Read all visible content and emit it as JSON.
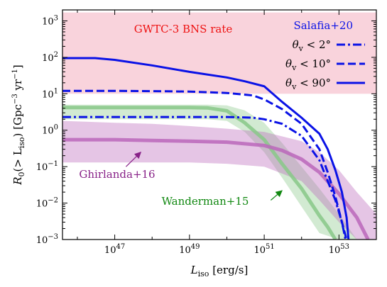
{
  "chart_data": {
    "type": "line",
    "xlabel_main": "L",
    "xlabel_sub": "iso",
    "xlabel_unit": " [erg/s]",
    "ylabel_pre": "R",
    "ylabel_sub0": "0",
    "ylabel_mid": "(> L",
    "ylabel_sub1": "iso",
    "ylabel_unit": ") [Gpc",
    "ylabel_sup1": "−3",
    "ylabel_yr": " yr",
    "ylabel_sup2": "−1",
    "ylabel_end": "]",
    "xscale": "log",
    "yscale": "log",
    "xlim": [
      4e+45,
      1e+54
    ],
    "ylim": [
      0.001,
      2000
    ],
    "x_ticks": [
      {
        "value": 1e+47,
        "base": "10",
        "exp": "47"
      },
      {
        "value": 1e+49,
        "base": "10",
        "exp": "49"
      },
      {
        "value": 1e+51,
        "base": "10",
        "exp": "51"
      },
      {
        "value": 1e+53,
        "base": "10",
        "exp": "53"
      }
    ],
    "y_ticks": [
      {
        "value": 0.001,
        "base": "10",
        "exp": "−3"
      },
      {
        "value": 0.01,
        "base": "10",
        "exp": "−2"
      },
      {
        "value": 0.1,
        "base": "10",
        "exp": "−1"
      },
      {
        "value": 1,
        "base": "10",
        "exp": "0"
      },
      {
        "value": 10,
        "base": "10",
        "exp": "1"
      },
      {
        "value": 100,
        "base": "10",
        "exp": "2"
      },
      {
        "value": 1000,
        "base": "10",
        "exp": "3"
      }
    ],
    "band": {
      "label": "GWTC-3 BNS rate",
      "ymin": 10,
      "ymax": 1700,
      "color": "#f9d3dc",
      "label_color": "#ee1111"
    },
    "models": [
      {
        "label": "Wanderman+15",
        "color": "#88c888",
        "band_x": [
          4e+45,
          1e+48,
          1e+49,
          3e+49,
          1e+50,
          3e+50,
          1e+51,
          3e+51,
          1e+52,
          3e+52,
          1e+53,
          3e+53
        ],
        "band_hi": [
          5,
          5,
          5,
          5,
          4.8,
          3.5,
          1.6,
          0.45,
          0.1,
          0.025,
          0.005,
          0.001
        ],
        "band_lo": [
          2,
          2,
          2,
          2,
          1.8,
          0.9,
          0.25,
          0.05,
          0.008,
          0.0015,
          0.001,
          0.001
        ],
        "curve_x": [
          4e+45,
          1e+48,
          1e+49,
          3e+49,
          1e+50,
          3e+50,
          1e+51,
          3e+51,
          1e+52,
          3e+52,
          5e+52,
          8e+52
        ],
        "curve_y": [
          4.2,
          4.2,
          4.2,
          4.1,
          3.4,
          1.6,
          0.55,
          0.12,
          0.025,
          0.0045,
          0.0022,
          0.001
        ]
      },
      {
        "label": "Ghirlanda+16",
        "color": "#bb66bb",
        "band_x": [
          4e+45,
          1e+47,
          1e+48,
          1e+49,
          1e+50,
          1e+51,
          1e+52,
          3e+52,
          1e+53,
          3e+53,
          1e+54
        ],
        "band_hi": [
          1.8,
          1.6,
          1.5,
          1.3,
          1.1,
          0.9,
          0.5,
          0.25,
          0.08,
          0.02,
          0.005
        ],
        "band_lo": [
          0.13,
          0.13,
          0.13,
          0.13,
          0.12,
          0.1,
          0.04,
          0.012,
          0.003,
          0.001,
          0.001
        ],
        "curve_x": [
          4e+45,
          1e+47,
          1e+48,
          1e+49,
          1e+50,
          1e+51,
          3e+51,
          1e+52,
          3e+52,
          1e+53,
          3e+53,
          6e+53
        ],
        "curve_y": [
          0.55,
          0.55,
          0.52,
          0.5,
          0.47,
          0.38,
          0.28,
          0.16,
          0.07,
          0.018,
          0.004,
          0.001
        ]
      }
    ],
    "salafia": {
      "label": "Salafia+20",
      "color": "#0a12e6",
      "series": [
        {
          "name": "θv < 2°",
          "legend_pre": "θ",
          "legend_sub": "v",
          "legend_post": " < 2°",
          "dash": "dashdot",
          "x": [
            4e+45,
            1e+48,
            1e+49,
            1e+50,
            5e+50,
            1e+51,
            3e+51,
            1e+52,
            3e+52,
            5e+52,
            8e+52,
            1.2e+53,
            1.5e+53
          ],
          "y": [
            2.3,
            2.3,
            2.3,
            2.3,
            2.2,
            2.0,
            1.5,
            0.7,
            0.15,
            0.04,
            0.012,
            0.003,
            0.001
          ]
        },
        {
          "name": "θv < 10°",
          "legend_pre": "θ",
          "legend_sub": "v",
          "legend_post": " < 10°",
          "dash": "dashed",
          "x": [
            4e+45,
            1e+47,
            1e+48,
            1e+49,
            1e+50,
            5e+50,
            1e+51,
            3e+51,
            1e+52,
            3e+52,
            5e+52,
            8e+52,
            1.2e+53,
            1.6e+53
          ],
          "y": [
            12,
            12,
            11.8,
            11.5,
            10.5,
            9,
            7,
            3.8,
            1.5,
            0.3,
            0.07,
            0.015,
            0.003,
            0.001
          ]
        },
        {
          "name": "θv < 90°",
          "legend_pre": "θ",
          "legend_sub": "v",
          "legend_post": " < 90°",
          "dash": "solid",
          "x": [
            4e+45,
            3e+46,
            1e+47,
            1e+48,
            1e+49,
            1e+50,
            3e+50,
            1e+51,
            3e+51,
            1e+52,
            3e+52,
            5e+52,
            8e+52,
            1.2e+53,
            1.6e+53,
            1.8e+53
          ],
          "y": [
            95,
            95,
            85,
            60,
            40,
            28,
            22,
            16,
            6,
            2.2,
            0.8,
            0.3,
            0.08,
            0.02,
            0.004,
            0.001
          ]
        }
      ]
    },
    "annotations": [
      {
        "text": "Ghirlanda+16",
        "color": "#882288",
        "arrow_from": [
          2e+47,
          0.1
        ],
        "arrow_to": [
          5e+47,
          0.25
        ]
      },
      {
        "text": "Wanderman+15",
        "color": "#118811",
        "arrow_from": [
          1.5e+51,
          0.012
        ],
        "arrow_to": [
          3e+51,
          0.022
        ]
      }
    ]
  }
}
